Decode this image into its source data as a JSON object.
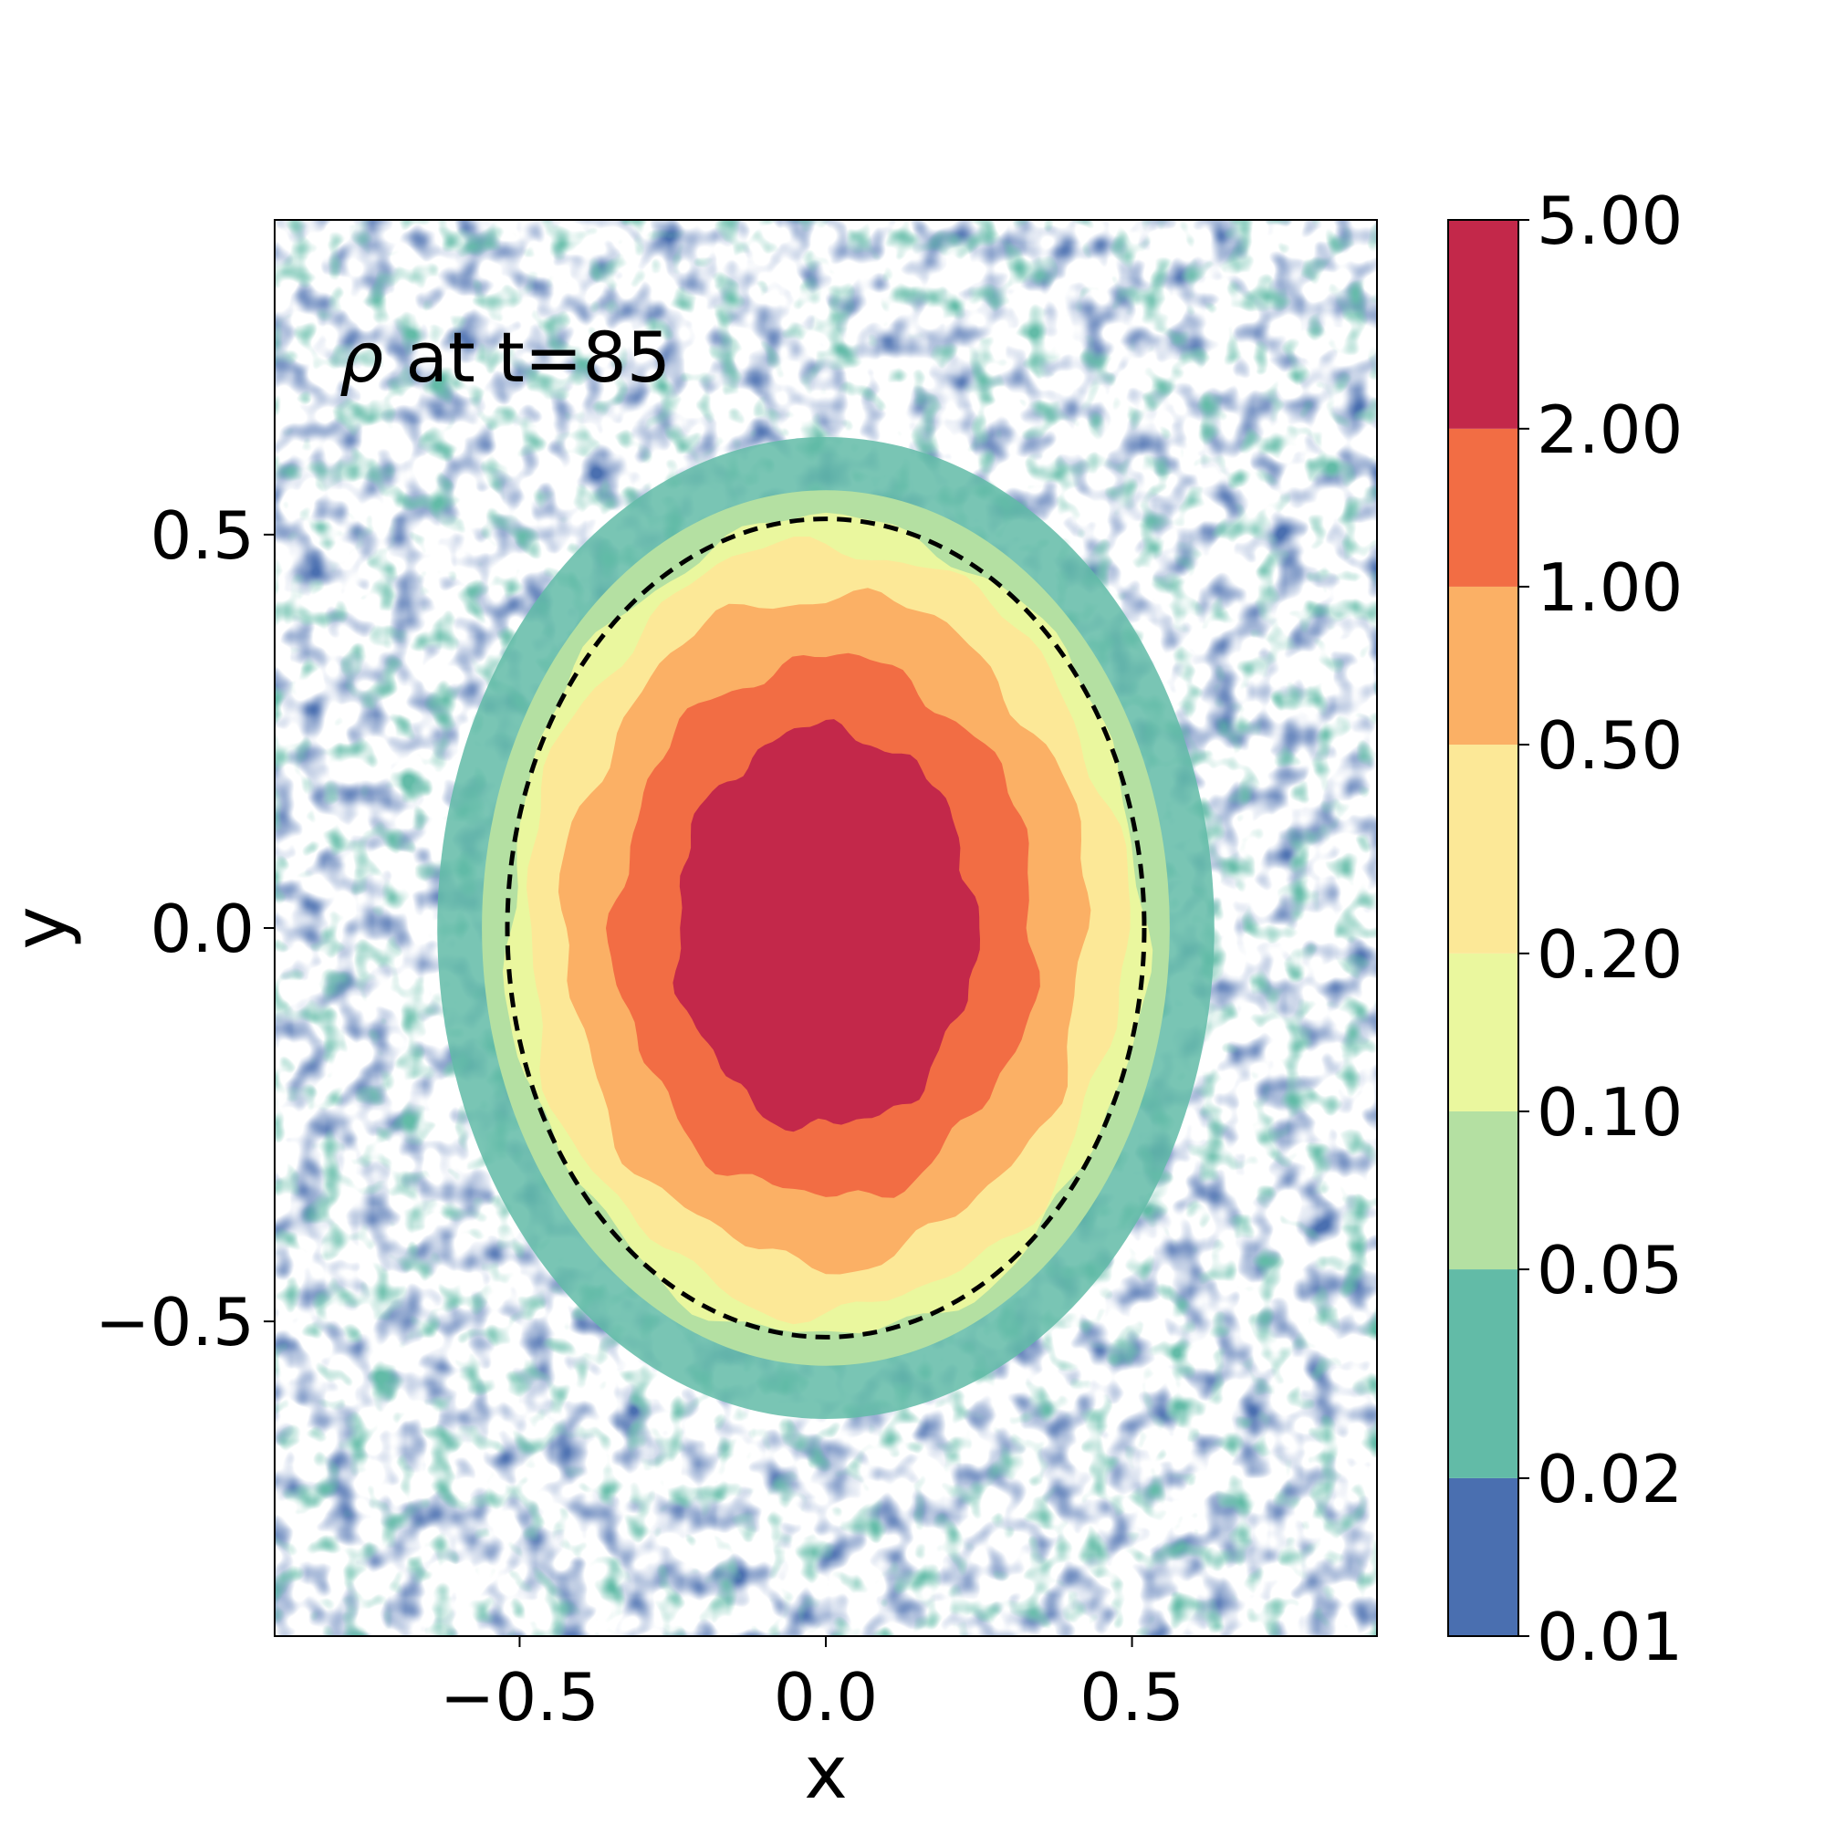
{
  "chart_data": {
    "type": "heatmap",
    "subtype": "filled-contour",
    "annotation": {
      "symbol": "ρ",
      "text": " at t=85"
    },
    "xlabel": "x",
    "ylabel": "y",
    "xlim": [
      -0.9,
      0.9
    ],
    "ylim": [
      -0.9,
      0.9
    ],
    "xticks": [
      -0.5,
      0.0,
      0.5
    ],
    "xtick_labels": [
      "−0.5",
      "0.0",
      "0.5"
    ],
    "yticks": [
      -0.5,
      0.0,
      0.5
    ],
    "ytick_labels": [
      "−0.5",
      "0.0",
      "0.5"
    ],
    "colorbar": {
      "scale": "log",
      "levels": [
        0.01,
        0.02,
        0.05,
        0.1,
        0.2,
        0.5,
        1.0,
        2.0,
        5.0
      ],
      "tick_labels": [
        "0.01",
        "0.02",
        "0.05",
        "0.10",
        "0.20",
        "0.50",
        "1.00",
        "2.00",
        "5.00"
      ],
      "colors": [
        "#4a6fb0",
        "#62bba7",
        "#b4e0a2",
        "#eaf79e",
        "#fce897",
        "#fbb065",
        "#f26d44",
        "#c3284a"
      ]
    },
    "ellipse": {
      "center": [
        0.0,
        0.0
      ],
      "semi_axis_x": 0.52,
      "semi_axis_y": 0.52,
      "style": "dashed",
      "color": "#000000"
    },
    "grid": false,
    "legend": "none"
  }
}
